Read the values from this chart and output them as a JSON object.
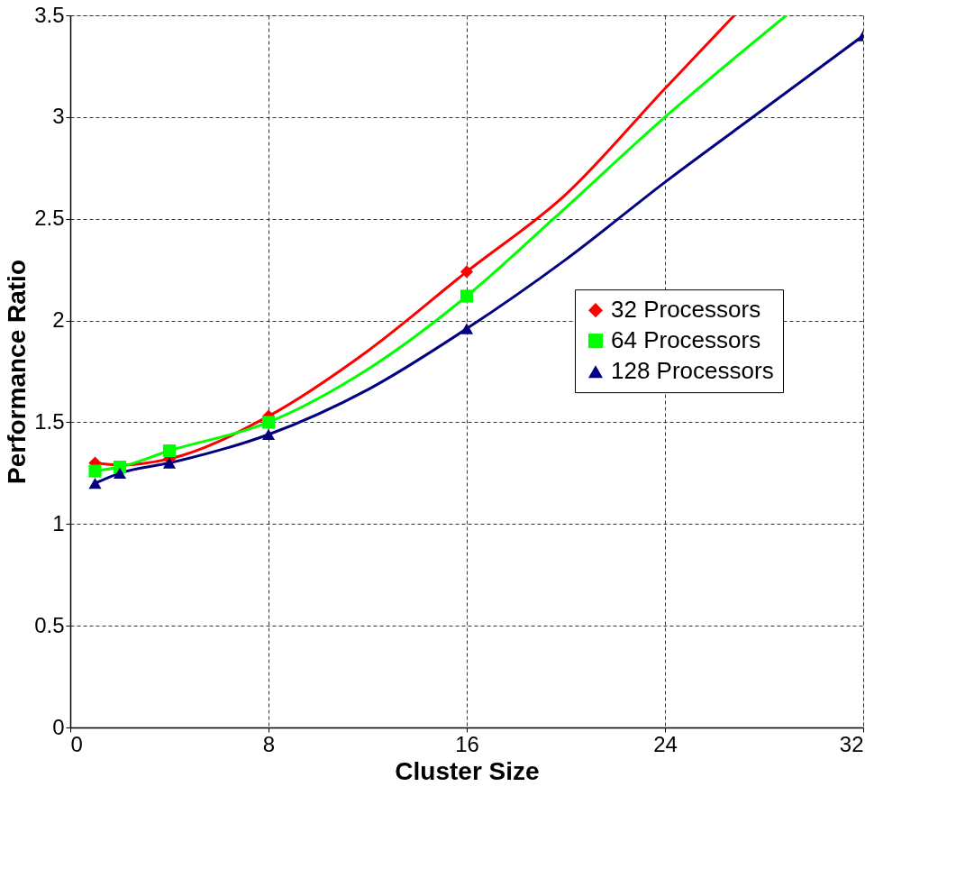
{
  "chart_data": {
    "type": "line",
    "xlabel": "Cluster Size",
    "ylabel": "Performance Ratio",
    "xlim": [
      0,
      32
    ],
    "xticks": [
      0,
      8,
      16,
      24,
      32
    ],
    "ylim": [
      0,
      3.5
    ],
    "yticks": [
      0,
      0.5,
      1,
      1.5,
      2,
      2.5,
      3,
      3.5
    ],
    "grid": true,
    "legend": "right",
    "series": [
      {
        "color": "#ff0000",
        "x": [
          1,
          2,
          4,
          8,
          12,
          16,
          20,
          24,
          26.8
        ],
        "values": [
          1.3,
          1.29,
          1.32,
          1.53,
          1.85,
          2.24,
          2.62,
          3.14,
          3.5
        ]
      },
      {
        "color": "#00ff00",
        "x": [
          1,
          2,
          4,
          8,
          12,
          16,
          19.5,
          24,
          28.9
        ],
        "values": [
          1.26,
          1.28,
          1.36,
          1.5,
          1.76,
          2.12,
          2.5,
          3.0,
          3.5
        ]
      },
      {
        "color": "#000080",
        "x": [
          1,
          2,
          4,
          8,
          12,
          16,
          20,
          24,
          28,
          32
        ],
        "values": [
          1.2,
          1.25,
          1.3,
          1.44,
          1.66,
          1.96,
          2.3,
          2.68,
          3.04,
          3.4
        ]
      },
      {
        "type": "scatter",
        "name": "32 Processors",
        "color": "#ff0000",
        "marker": "diamond",
        "x": [
          1,
          2,
          4,
          8,
          16
        ],
        "values": [
          1.3,
          null,
          1.32,
          1.53,
          2.24
        ]
      },
      {
        "type": "scatter",
        "name": "64 Processors",
        "color": "#00ff00",
        "marker": "square",
        "x": [
          1,
          2,
          4,
          8,
          16
        ],
        "values": [
          1.26,
          1.28,
          1.36,
          1.5,
          2.12
        ]
      },
      {
        "type": "scatter",
        "name": "128 Processors",
        "color": "#000080",
        "marker": "triangle",
        "x": [
          1,
          2,
          4,
          8,
          16,
          32
        ],
        "values": [
          1.2,
          1.25,
          1.3,
          1.44,
          1.96,
          3.4
        ]
      }
    ]
  }
}
